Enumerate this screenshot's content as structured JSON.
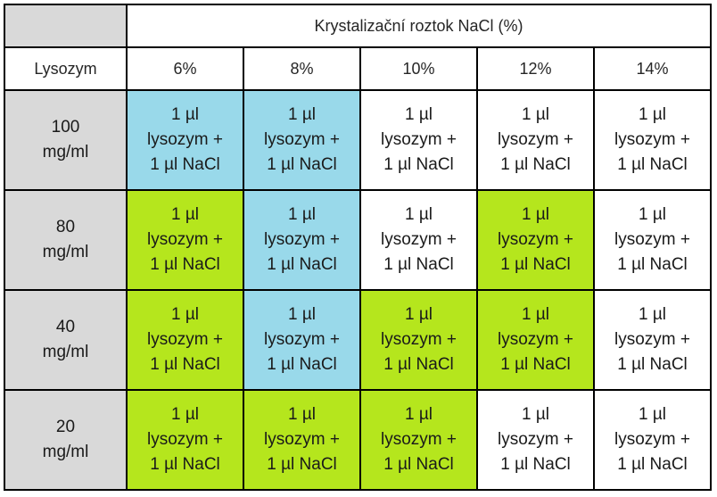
{
  "table": {
    "header_title": "Krystalizační roztok NaCl (%)",
    "row_header_label": "Lysozym",
    "columns": [
      "6%",
      "8%",
      "10%",
      "12%",
      "14%"
    ],
    "cell_lines": [
      "1 µl",
      "lysozym +",
      "1 µl NaCl"
    ],
    "colors": {
      "blue": "#99d9ea",
      "green": "#b5e61d",
      "white": "#ffffff",
      "gray": "#d9d9d9"
    },
    "rows": [
      {
        "label_value": "100",
        "label_unit": "mg/ml",
        "cell_colors": [
          "blue",
          "blue",
          "white",
          "white",
          "white"
        ]
      },
      {
        "label_value": "80",
        "label_unit": "mg/ml",
        "cell_colors": [
          "green",
          "blue",
          "white",
          "green",
          "white"
        ]
      },
      {
        "label_value": "40",
        "label_unit": "mg/ml",
        "cell_colors": [
          "green",
          "blue",
          "green",
          "green",
          "white"
        ]
      },
      {
        "label_value": "20",
        "label_unit": "mg/ml",
        "cell_colors": [
          "green",
          "green",
          "green",
          "white",
          "white"
        ]
      }
    ]
  }
}
